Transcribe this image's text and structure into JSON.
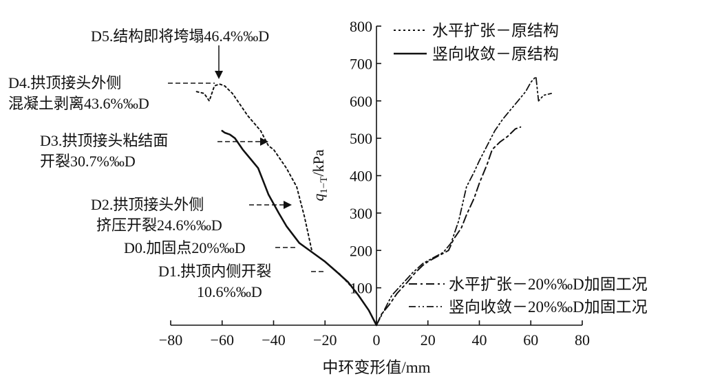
{
  "chart_data": {
    "type": "line",
    "xlabel": "中环变形值/mm",
    "ylabel_main": "q",
    "ylabel_sub": "1−T",
    "ylabel_unit": "/kPa",
    "xlim": [
      -80,
      80
    ],
    "ylim": [
      0,
      800
    ],
    "x_ticks": [
      -80,
      -60,
      -40,
      -20,
      0,
      20,
      40,
      60,
      80
    ],
    "x_tick_labels": [
      "−80",
      "−60",
      "−40",
      "−20",
      "0",
      "20",
      "40",
      "60",
      "80"
    ],
    "y_ticks": [
      100,
      200,
      300,
      400,
      500,
      600,
      700,
      800
    ],
    "y_tick_labels": [
      "100",
      "200",
      "300",
      "400",
      "500",
      "600",
      "700",
      "800"
    ],
    "grid": false,
    "series": [
      {
        "name": "水平扩张－原结构",
        "style": "dotted",
        "color": "#111111",
        "points": [
          [
            0,
            0
          ],
          [
            -3,
            40
          ],
          [
            -8,
            90
          ],
          [
            -14,
            135
          ],
          [
            -20,
            170
          ],
          [
            -25,
            195
          ],
          [
            -28,
            290
          ],
          [
            -31,
            370
          ],
          [
            -35,
            420
          ],
          [
            -40,
            470
          ],
          [
            -42,
            480
          ],
          [
            -45,
            520
          ],
          [
            -50,
            560
          ],
          [
            -53,
            590
          ],
          [
            -56,
            620
          ],
          [
            -59,
            640
          ],
          [
            -61,
            645
          ],
          [
            -63,
            640
          ],
          [
            -65,
            600
          ],
          [
            -67,
            620
          ],
          [
            -70,
            625
          ]
        ]
      },
      {
        "name": "竖向收敛－原结构",
        "style": "solid",
        "color": "#111111",
        "points": [
          [
            0,
            0
          ],
          [
            -3,
            40
          ],
          [
            -7,
            80
          ],
          [
            -11,
            115
          ],
          [
            -15,
            140
          ],
          [
            -20,
            170
          ],
          [
            -25,
            195
          ],
          [
            -30,
            220
          ],
          [
            -35,
            265
          ],
          [
            -38,
            300
          ],
          [
            -42,
            350
          ],
          [
            -44,
            385
          ],
          [
            -46,
            420
          ],
          [
            -49,
            445
          ],
          [
            -52,
            470
          ],
          [
            -55,
            500
          ],
          [
            -57,
            510
          ],
          [
            -59,
            515
          ],
          [
            -60,
            520
          ]
        ]
      },
      {
        "name": "水平扩张－20%‰D加固工况",
        "style": "dashdot",
        "color": "#111111",
        "points": [
          [
            0,
            0
          ],
          [
            2,
            30
          ],
          [
            5,
            55
          ],
          [
            8,
            85
          ],
          [
            12,
            115
          ],
          [
            15,
            140
          ],
          [
            18,
            160
          ],
          [
            20,
            170
          ],
          [
            24,
            185
          ],
          [
            28,
            200
          ],
          [
            30,
            230
          ],
          [
            33,
            260
          ],
          [
            35,
            295
          ],
          [
            38,
            340
          ],
          [
            40,
            380
          ],
          [
            43,
            430
          ],
          [
            45,
            470
          ],
          [
            48,
            490
          ],
          [
            51,
            505
          ],
          [
            54,
            525
          ],
          [
            56,
            530
          ]
        ]
      },
      {
        "name": "竖向收敛－20%‰D加固工况",
        "style": "dashdotdot",
        "color": "#111111",
        "points": [
          [
            0,
            0
          ],
          [
            3,
            40
          ],
          [
            6,
            80
          ],
          [
            10,
            110
          ],
          [
            14,
            140
          ],
          [
            18,
            165
          ],
          [
            22,
            180
          ],
          [
            26,
            195
          ],
          [
            29,
            220
          ],
          [
            32,
            280
          ],
          [
            35,
            370
          ],
          [
            38,
            410
          ],
          [
            40,
            440
          ],
          [
            43,
            480
          ],
          [
            46,
            520
          ],
          [
            49,
            550
          ],
          [
            52,
            575
          ],
          [
            55,
            600
          ],
          [
            58,
            625
          ],
          [
            60,
            650
          ],
          [
            62,
            665
          ],
          [
            63,
            600
          ],
          [
            65,
            615
          ],
          [
            68,
            620
          ]
        ]
      }
    ],
    "annotations": [
      {
        "id": "d5",
        "lines": [
          "D5.结构即将垮塌46.4%‰D"
        ]
      },
      {
        "id": "d4",
        "lines": [
          "D4.拱顶接头外侧",
          "混凝土剥离43.6%‰D"
        ]
      },
      {
        "id": "d3",
        "lines": [
          "D3.拱顶接头粘结面",
          "开裂30.7%‰D"
        ]
      },
      {
        "id": "d2",
        "lines": [
          "D2.拱顶接头外侧",
          "挤压开裂24.6%‰D"
        ]
      },
      {
        "id": "d0",
        "lines": [
          "D0.加固点20%‰D"
        ]
      },
      {
        "id": "d1",
        "lines": [
          "D1.拱顶内侧开裂",
          "10.6%‰D"
        ]
      }
    ],
    "legend_placement": [
      "top-right",
      "bottom-right"
    ]
  }
}
